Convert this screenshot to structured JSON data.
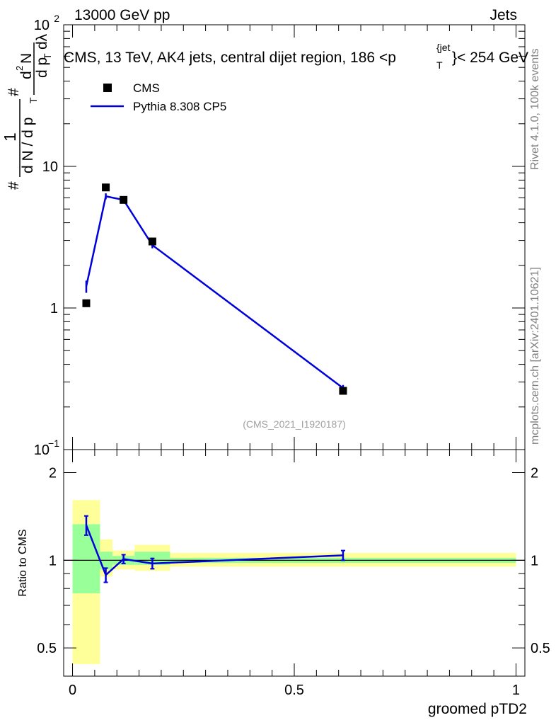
{
  "header": {
    "left": "13000 GeV pp",
    "right": "Jets"
  },
  "title": "CMS, 13 TeV, AK4 jets, central dijet region, 186 <p",
  "title_sup": "{jet",
  "title_sub": "T",
  "title_tail": "}< 254 GeV",
  "side_label_top": "Rivet 4.1.0,  100k events",
  "side_label_bottom": "mcplots.cern.ch [arXiv:2401.10621]",
  "watermark": "(CMS_2021_I1920187)",
  "legend": {
    "data_label": "CMS",
    "mc_label": "Pythia 8.308 CP5"
  },
  "ylabel_main_pieces": [
    "#",
    "1",
    "d N / d p",
    "T",
    "#",
    "d p",
    "T",
    "d",
    "2",
    "N",
    "dλ"
  ],
  "ylabel_ratio": "Ratio to CMS",
  "xlabel": "groomed pTD2",
  "colors": {
    "mc": "#0000dd",
    "band_inner": "#99ff99",
    "band_outer": "#ffff99",
    "data": "#000000"
  },
  "chart_data": [
    {
      "type": "scatter",
      "panel": "main",
      "xlim": [
        -0.02,
        1.02
      ],
      "ylim": [
        0.1,
        100
      ],
      "yscale": "log",
      "xlabel": "groomed pTD2",
      "grid": false,
      "legend_position": "top-left",
      "yticks": [
        {
          "v": 0.1,
          "base": "10",
          "exp": "−1"
        },
        {
          "v": 1,
          "base": "1",
          "exp": ""
        },
        {
          "v": 10,
          "base": "10",
          "exp": ""
        },
        {
          "v": 100,
          "base": "10",
          "exp": "2"
        }
      ],
      "series": [
        {
          "name": "CMS",
          "style": "markers",
          "x": [
            0.031,
            0.075,
            0.115,
            0.18,
            0.61
          ],
          "y": [
            1.08,
            7.1,
            5.8,
            2.95,
            0.26
          ]
        },
        {
          "name": "Pythia 8.308 CP5",
          "style": "line",
          "x": [
            0.031,
            0.075,
            0.115,
            0.18,
            0.61
          ],
          "y": [
            1.42,
            6.15,
            5.8,
            2.78,
            0.272
          ],
          "yerr": [
            0.14,
            0.3,
            0.25,
            0.14,
            0.014
          ]
        }
      ]
    },
    {
      "type": "line",
      "panel": "ratio",
      "xlim": [
        -0.02,
        1.02
      ],
      "ylim": [
        0.4,
        2.4
      ],
      "yscale": "log",
      "ylabel": "Ratio to CMS",
      "xlabel": "groomed pTD2",
      "xticks": [
        {
          "v": 0,
          "label": "0"
        },
        {
          "v": 0.5,
          "label": "0.5"
        },
        {
          "v": 1,
          "label": "1"
        }
      ],
      "yticks": [
        {
          "v": 0.5,
          "label": "0.5"
        },
        {
          "v": 1,
          "label": "1"
        },
        {
          "v": 2,
          "label": "2"
        }
      ],
      "bands": [
        {
          "x0": 0.0,
          "x1": 0.062,
          "inner": [
            0.77,
            1.33
          ],
          "outer": [
            0.44,
            1.61
          ]
        },
        {
          "x0": 0.062,
          "x1": 0.09,
          "inner": [
            0.93,
            1.07
          ],
          "outer": [
            0.88,
            1.18
          ]
        },
        {
          "x0": 0.09,
          "x1": 0.14,
          "inner": [
            0.965,
            1.035
          ],
          "outer": [
            0.93,
            1.08
          ]
        },
        {
          "x0": 0.14,
          "x1": 0.22,
          "inner": [
            0.965,
            1.07
          ],
          "outer": [
            0.92,
            1.13
          ]
        },
        {
          "x0": 0.22,
          "x1": 1.0,
          "inner": [
            0.98,
            1.02
          ],
          "outer": [
            0.95,
            1.06
          ]
        }
      ],
      "series": [
        {
          "name": "Pythia 8.308 CP5",
          "x": [
            0.031,
            0.075,
            0.115,
            0.18,
            0.61
          ],
          "y": [
            1.32,
            0.89,
            1.01,
            0.975,
            1.04
          ],
          "yerr": [
            0.1,
            0.05,
            0.035,
            0.04,
            0.04
          ]
        }
      ]
    }
  ]
}
